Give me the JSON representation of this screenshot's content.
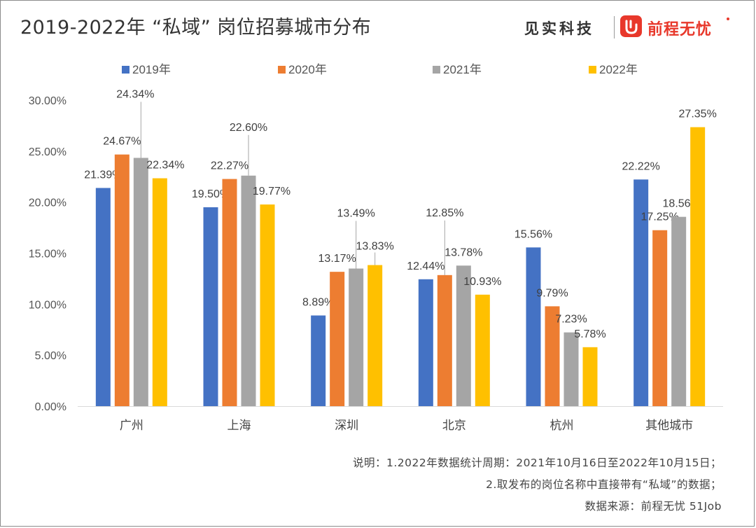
{
  "title": "2019-2022年 “私域” 岗位招募城市分布",
  "brand": {
    "jianshi": "见实科技",
    "qiancheng": "前程无忧"
  },
  "notes": {
    "line1": "说明：1.2022年数据统计周期：2021年10月16日至2022年10月15日；",
    "line2": "2.取发布的岗位名称中直接带有“私域”的数据；",
    "source": "数据来源：前程无忧 51Job"
  },
  "chart_data": {
    "type": "bar",
    "categories": [
      "广州",
      "上海",
      "深圳",
      "北京",
      "杭州",
      "其他城市"
    ],
    "series": [
      {
        "name": "2019年",
        "color": "#4472c4",
        "values": [
          21.39,
          19.5,
          8.89,
          12.44,
          15.56,
          22.22
        ],
        "labels": [
          "21.39%",
          "19.50%",
          "8.89%",
          "12.44%",
          "15.56%",
          "22.22%"
        ]
      },
      {
        "name": "2020年",
        "color": "#ed7d31",
        "values": [
          24.67,
          22.27,
          13.17,
          12.85,
          9.79,
          17.25
        ],
        "labels": [
          "24.67%",
          "22.27%",
          "13.17%",
          "12.85%",
          "9.79%",
          "17.25%"
        ]
      },
      {
        "name": "2021年",
        "color": "#a5a5a5",
        "values": [
          24.34,
          22.6,
          13.49,
          13.78,
          7.23,
          18.56
        ],
        "labels": [
          "24.34%",
          "22.60%",
          "13.49%",
          "13.78%",
          "7.23%",
          "18.56%"
        ]
      },
      {
        "name": "2022年",
        "color": "#ffc000",
        "values": [
          22.34,
          19.77,
          13.83,
          10.93,
          5.78,
          27.35
        ],
        "labels": [
          "22.34%",
          "19.77%",
          "13.83%",
          "10.93%",
          "5.78%",
          "27.35%"
        ]
      }
    ],
    "yticks": [
      "0.00%",
      "5.00%",
      "10.00%",
      "15.00%",
      "20.00%",
      "25.00%",
      "30.00%"
    ],
    "ylim": [
      0,
      30
    ],
    "grid": false,
    "legend_position": "top"
  }
}
